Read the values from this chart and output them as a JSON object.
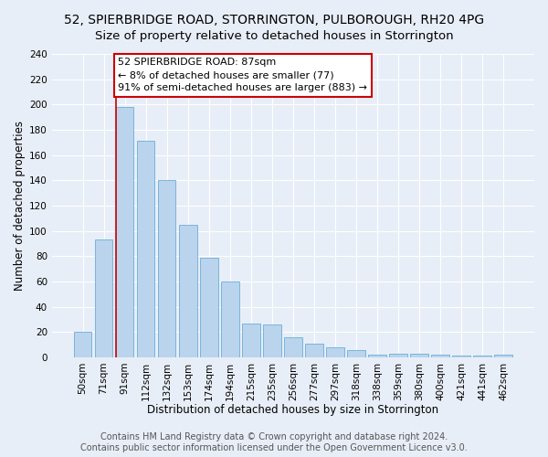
{
  "title": "52, SPIERBRIDGE ROAD, STORRINGTON, PULBOROUGH, RH20 4PG",
  "subtitle": "Size of property relative to detached houses in Storrington",
  "xlabel": "Distribution of detached houses by size in Storrington",
  "ylabel": "Number of detached properties",
  "categories": [
    "50sqm",
    "71sqm",
    "91sqm",
    "112sqm",
    "132sqm",
    "153sqm",
    "174sqm",
    "194sqm",
    "215sqm",
    "235sqm",
    "256sqm",
    "277sqm",
    "297sqm",
    "318sqm",
    "338sqm",
    "359sqm",
    "380sqm",
    "400sqm",
    "421sqm",
    "441sqm",
    "462sqm"
  ],
  "values": [
    20,
    93,
    198,
    171,
    140,
    105,
    79,
    60,
    27,
    26,
    16,
    11,
    8,
    6,
    2,
    3,
    3,
    2,
    1,
    1,
    2
  ],
  "bar_color": "#bad4ed",
  "bar_edge_color": "#6aaed6",
  "vline_color": "#cc0000",
  "annotation_text": "52 SPIERBRIDGE ROAD: 87sqm\n← 8% of detached houses are smaller (77)\n91% of semi-detached houses are larger (883) →",
  "annotation_box_color": "#ffffff",
  "annotation_box_edgecolor": "#cc0000",
  "footer_line1": "Contains HM Land Registry data © Crown copyright and database right 2024.",
  "footer_line2": "Contains public sector information licensed under the Open Government Licence v3.0.",
  "background_color": "#e8eef7",
  "plot_bg_color": "#e8eef7",
  "ylim": [
    0,
    240
  ],
  "yticks": [
    0,
    20,
    40,
    60,
    80,
    100,
    120,
    140,
    160,
    180,
    200,
    220,
    240
  ],
  "title_fontsize": 10,
  "xlabel_fontsize": 8.5,
  "ylabel_fontsize": 8.5,
  "tick_fontsize": 7.5,
  "annotation_fontsize": 8,
  "footer_fontsize": 7
}
